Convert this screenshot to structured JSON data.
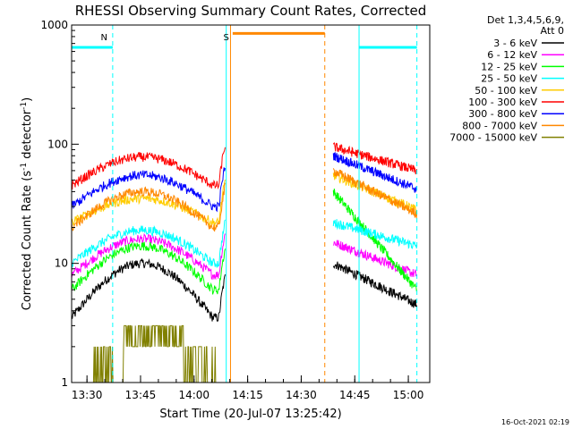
{
  "chart_data": {
    "type": "line",
    "title": "RHESSI Observing Summary Count Rates, Corrected",
    "xlabel": "Start Time (20-Jul-07 13:25:42)",
    "ylabel": "Corrected Count Rate (s",
    "ylabel_sup1": "-1",
    "ylabel_mid": " detector",
    "ylabel_sup2": "-1",
    "ylabel_end": ")",
    "y_scale": "log",
    "xlim": [
      13.4283,
      15.1
    ],
    "ylim": [
      1,
      1000
    ],
    "x_ticks": [
      {
        "v": 13.5,
        "label": "13:30"
      },
      {
        "v": 13.75,
        "label": "13:45"
      },
      {
        "v": 14.0,
        "label": "14:00"
      },
      {
        "v": 14.25,
        "label": "14:15"
      },
      {
        "v": 14.5,
        "label": "14:30"
      },
      {
        "v": 14.75,
        "label": "14:45"
      },
      {
        "v": 15.0,
        "label": "15:00"
      }
    ],
    "y_ticks": [
      {
        "v": 1,
        "label": "1"
      },
      {
        "v": 10,
        "label": "10"
      },
      {
        "v": 100,
        "label": "100"
      },
      {
        "v": 1000,
        "label": "1000"
      }
    ],
    "legend_header": "Det 1,3,4,5,6,9,",
    "legend_header2": "Att 0",
    "legend_placement": "right",
    "series": [
      {
        "name": "3 - 6 keV",
        "color": "#000000",
        "before": [
          3.5,
          10
        ],
        "after": [
          10,
          4.5
        ]
      },
      {
        "name": "6 - 12 keV",
        "color": "#ff00ff",
        "before": [
          8,
          16
        ],
        "after": [
          15,
          8
        ]
      },
      {
        "name": "12 - 25 keV",
        "color": "#00ff00",
        "before": [
          6,
          14
        ],
        "after": [
          40,
          6
        ]
      },
      {
        "name": "25 - 50 keV",
        "color": "#00ffff",
        "before": [
          10,
          19
        ],
        "after": [
          22,
          14
        ]
      },
      {
        "name": "50 - 100 keV",
        "color": "#ffcc00",
        "before": [
          22,
          35
        ],
        "after": [
          55,
          28
        ]
      },
      {
        "name": "100 - 300 keV",
        "color": "#ff0000",
        "before": [
          45,
          78
        ],
        "after": [
          95,
          60
        ]
      },
      {
        "name": "300 - 800 keV",
        "color": "#0000ff",
        "before": [
          30,
          55
        ],
        "after": [
          80,
          42
        ]
      },
      {
        "name": "800 - 7000 keV",
        "color": "#ff8800",
        "before": [
          20,
          40
        ],
        "after": [
          60,
          26
        ]
      },
      {
        "name": "7000 - 15000 keV",
        "color": "#808000",
        "before": [
          1,
          3
        ],
        "after": [
          1,
          1
        ]
      }
    ],
    "annotations": [
      {
        "text": "N",
        "color": "#00ffff",
        "x": 13.58
      },
      {
        "text": "S",
        "color": "#ff8800",
        "x": 14.15
      }
    ],
    "timestamp": "16-Oct-2021 02:19"
  }
}
